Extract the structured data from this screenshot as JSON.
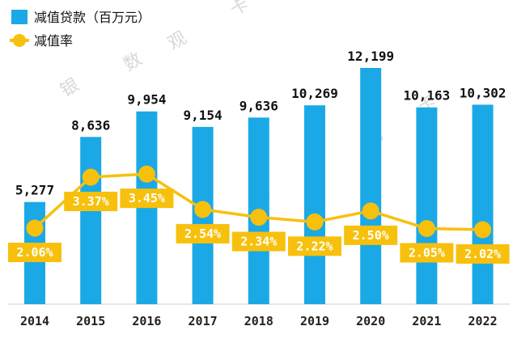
{
  "chart_data": {
    "type": "bar",
    "categories": [
      "2014",
      "2015",
      "2016",
      "2017",
      "2018",
      "2019",
      "2020",
      "2021",
      "2022"
    ],
    "series": [
      {
        "name": "减值贷款（百万元）",
        "type": "bar",
        "values": [
          5277,
          8636,
          9954,
          9154,
          9636,
          10269,
          12199,
          10163,
          10302
        ],
        "labels": [
          "5,277",
          "8,636",
          "9,954",
          "9,154",
          "9,636",
          "10,269",
          "12,199",
          "10,163",
          "10,302"
        ],
        "color": "#1aa9e6"
      },
      {
        "name": "减值率",
        "type": "line",
        "values": [
          2.06,
          3.37,
          3.45,
          2.54,
          2.34,
          2.22,
          2.5,
          2.05,
          2.02
        ],
        "labels": [
          "2.06%",
          "3.37%",
          "3.45%",
          "2.54%",
          "2.34%",
          "2.22%",
          "2.50%",
          "2.05%",
          "2.02%"
        ],
        "color": "#f7c00c"
      }
    ],
    "legend_position": "top-left",
    "grid": false
  },
  "watermark": [
    "银",
    "数",
    "观",
    "卡",
    "银",
    "数",
    "观",
    "卡"
  ]
}
